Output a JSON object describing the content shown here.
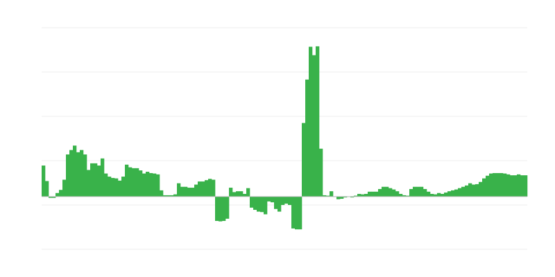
{
  "chart_data": {
    "type": "bar",
    "title": "",
    "xlabel": "",
    "ylabel": "",
    "ylim": [
      -1.19,
      3.81
    ],
    "grid": true,
    "colors": {
      "bar": "#39b24a",
      "grid": "#ececec",
      "baseline": "#bbbbbb"
    },
    "values": [
      0.7,
      0.35,
      -0.03,
      -0.03,
      0.08,
      0.15,
      0.38,
      0.95,
      1.05,
      1.15,
      1.0,
      1.05,
      0.95,
      0.6,
      0.75,
      0.75,
      0.7,
      0.86,
      0.52,
      0.45,
      0.42,
      0.41,
      0.36,
      0.45,
      0.72,
      0.66,
      0.64,
      0.64,
      0.59,
      0.52,
      0.56,
      0.53,
      0.52,
      0.5,
      0.14,
      0.03,
      0.03,
      0.03,
      0.05,
      0.3,
      0.22,
      0.22,
      0.2,
      0.2,
      0.27,
      0.34,
      0.34,
      0.37,
      0.4,
      0.38,
      -0.55,
      -0.56,
      -0.55,
      -0.5,
      0.2,
      0.1,
      0.12,
      0.12,
      0.06,
      0.19,
      -0.25,
      -0.3,
      -0.34,
      -0.35,
      -0.4,
      -0.11,
      -0.13,
      -0.28,
      -0.34,
      -0.19,
      -0.16,
      -0.19,
      -0.72,
      -0.74,
      -0.74,
      1.66,
      2.64,
      3.38,
      3.19,
      3.39,
      1.08,
      0.03,
      0.02,
      0.12,
      0.0,
      -0.06,
      -0.05,
      -0.02,
      0.0,
      -0.02,
      0.02,
      0.06,
      0.05,
      0.06,
      0.11,
      0.11,
      0.11,
      0.17,
      0.22,
      0.22,
      0.19,
      0.16,
      0.12,
      0.06,
      0.03,
      0.02,
      0.17,
      0.22,
      0.22,
      0.22,
      0.17,
      0.11,
      0.06,
      0.05,
      0.08,
      0.06,
      0.09,
      0.12,
      0.14,
      0.16,
      0.19,
      0.22,
      0.25,
      0.3,
      0.27,
      0.28,
      0.33,
      0.41,
      0.47,
      0.52,
      0.53,
      0.53,
      0.53,
      0.52,
      0.5,
      0.48,
      0.48,
      0.5,
      0.48,
      0.48
    ]
  }
}
